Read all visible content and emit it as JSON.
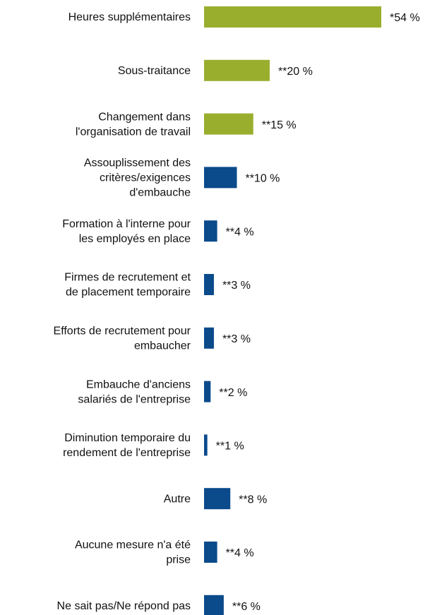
{
  "chart_data": {
    "type": "bar",
    "orientation": "horizontal",
    "categories": [
      [
        "Heures supplémentaires"
      ],
      [
        "Sous-traitance"
      ],
      [
        "Changement dans",
        "l'organisation de travail"
      ],
      [
        "Assouplissement des",
        "critères/exigences",
        "d'embauche"
      ],
      [
        "Formation à l'interne pour",
        "les employés en place"
      ],
      [
        "Firmes de recrutement et",
        "de placement temporaire"
      ],
      [
        "Efforts de recrutement pour",
        "embaucher"
      ],
      [
        "Embauche d'anciens",
        "salariés de l'entreprise"
      ],
      [
        "Diminution temporaire du",
        "rendement de l'entreprise"
      ],
      [
        "Autre"
      ],
      [
        "Aucune mesure n'a été",
        "prise"
      ],
      [
        "Ne sait pas/Ne répond pas"
      ]
    ],
    "values": [
      54,
      20,
      15,
      10,
      4,
      3,
      3,
      2,
      1,
      8,
      4,
      6
    ],
    "value_labels": [
      "*54 %",
      "**20 %",
      "**15 %",
      "**10 %",
      "**4 %",
      "**3 %",
      "**3 %",
      "**2 %",
      "**1 %",
      "**8 %",
      "**4 %",
      "**6 %"
    ],
    "colors": [
      "#9aae2e",
      "#9aae2e",
      "#9aae2e",
      "#0b4a8b",
      "#0b4a8b",
      "#0b4a8b",
      "#0b4a8b",
      "#0b4a8b",
      "#0b4a8b",
      "#0b4a8b",
      "#0b4a8b",
      "#0b4a8b"
    ]
  }
}
